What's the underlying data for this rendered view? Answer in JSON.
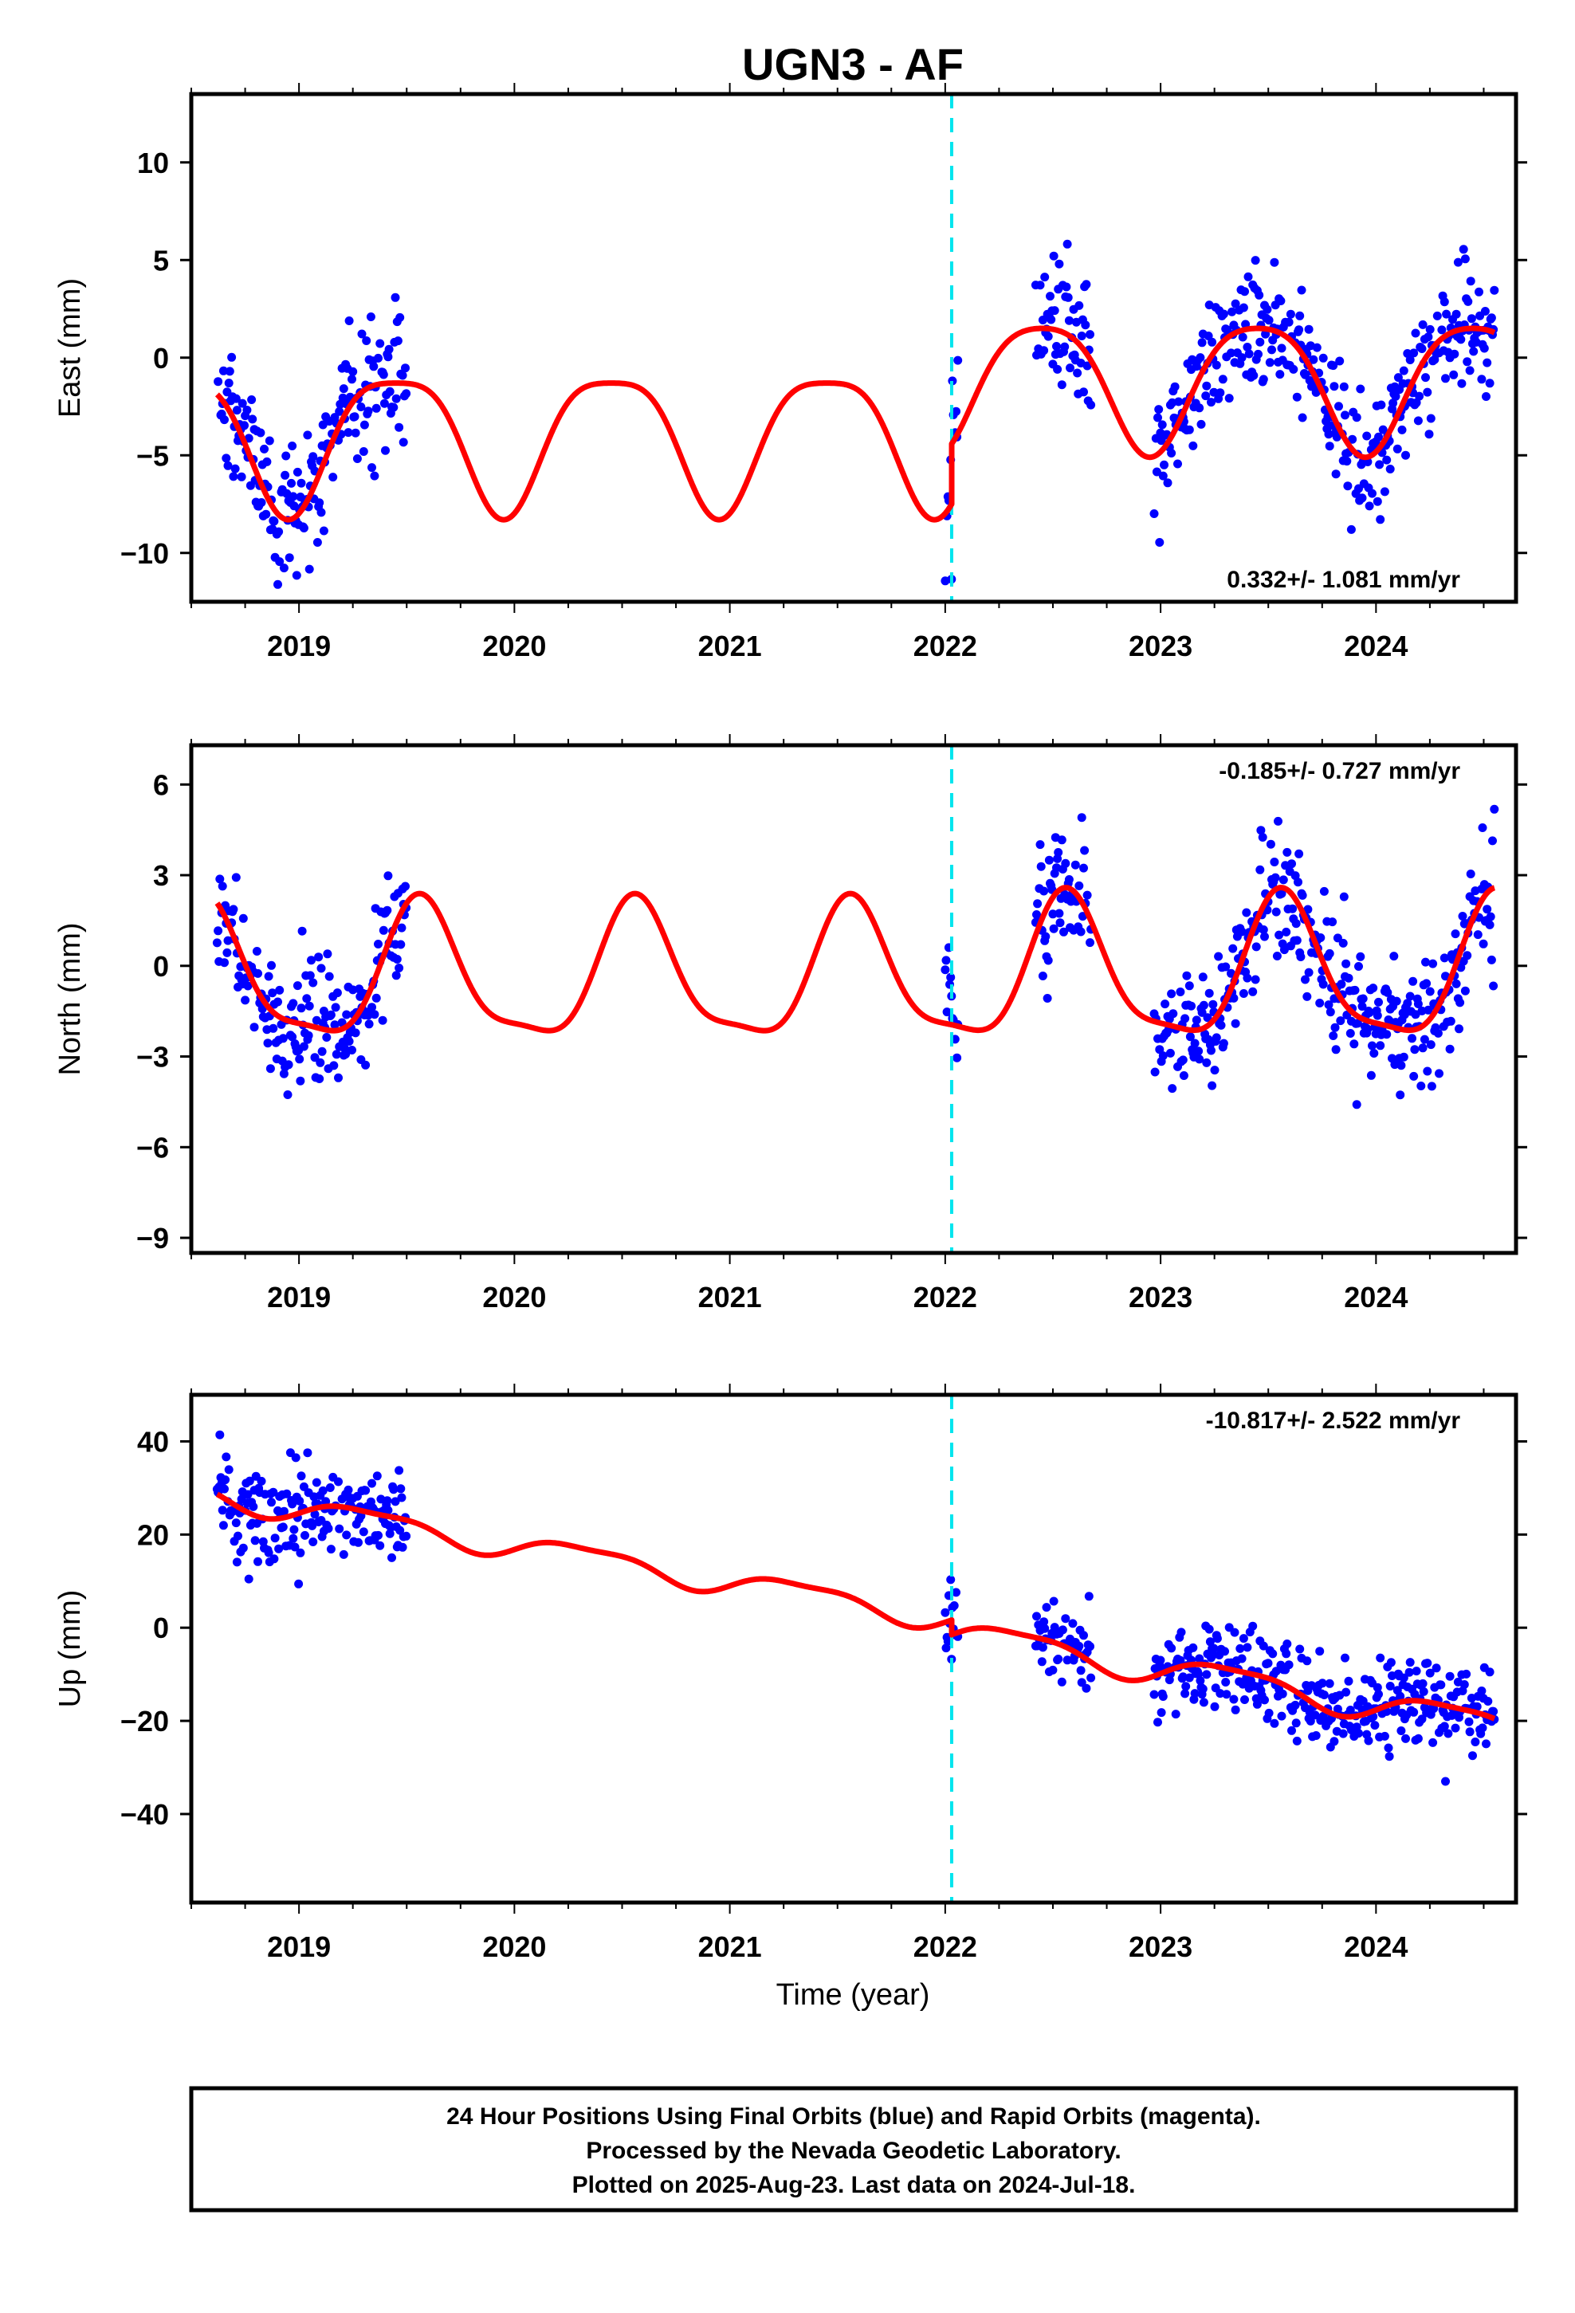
{
  "title": "UGN3 - AF",
  "xlabel": "Time (year)",
  "footer": {
    "line1": "24 Hour Positions Using Final Orbits (blue) and Rapid Orbits (magenta).",
    "line2": "Processed by the Nevada Geodetic Laboratory.",
    "line3": "Plotted on 2025-Aug-23. Last data on 2024-Jul-18."
  },
  "colors": {
    "points": "#0000ff",
    "model": "#ff0000",
    "offset_line": "#00e5ee",
    "frame": "#000000"
  },
  "chart_data": [
    {
      "type": "scatter",
      "ylabel": "East (mm)",
      "rate": "0.332+/- 1.081 mm/yr",
      "xlim": [
        2018.5,
        2024.65
      ],
      "ylim": [
        -12.5,
        13.5
      ],
      "yticks": [
        -10,
        -5,
        0,
        5,
        10
      ],
      "xticks": [
        2019,
        2020,
        2021,
        2022,
        2023,
        2024
      ],
      "offset_x": 2022.03,
      "data_segments": [
        [
          2018.62,
          2019.5
        ],
        [
          2022.0,
          2022.06
        ],
        [
          2022.42,
          2022.68
        ],
        [
          2022.97,
          2024.55
        ]
      ],
      "model": {
        "start": 2018.62,
        "end": 2024.55,
        "break": 2022.03,
        "baseline": [
          -4.0,
          -1.2
        ],
        "trend": 0.0,
        "annual_amp": [
          3.5,
          3.3
        ],
        "annual_peak": 0.45,
        "semi_amp": [
          0.8,
          0.6
        ],
        "semi_peak": 0.2,
        "scatter_sd": 1.6
      }
    },
    {
      "type": "scatter",
      "ylabel": "North (mm)",
      "rate": "-0.185+/- 0.727 mm/yr",
      "xlim": [
        2018.5,
        2024.65
      ],
      "ylim": [
        -9.5,
        7.3
      ],
      "yticks": [
        -9,
        -6,
        -3,
        0,
        3,
        6
      ],
      "xticks": [
        2019,
        2020,
        2021,
        2022,
        2023,
        2024
      ],
      "offset_x": 2022.03,
      "data_segments": [
        [
          2018.62,
          2019.5
        ],
        [
          2022.0,
          2022.06
        ],
        [
          2022.42,
          2022.68
        ],
        [
          2022.97,
          2024.55
        ]
      ],
      "model": {
        "start": 2018.62,
        "end": 2024.55,
        "break": 2022.03,
        "baseline": [
          -0.4,
          -0.3
        ],
        "trend": 0.0,
        "annual_amp": [
          2.2,
          2.3
        ],
        "annual_peak": 0.57,
        "semi_amp": [
          0.6,
          0.6
        ],
        "semi_peak": 0.05,
        "scatter_sd": 1.1
      }
    },
    {
      "type": "scatter",
      "ylabel": "Up (mm)",
      "rate": "-10.817+/- 2.522 mm/yr",
      "xlim": [
        2018.5,
        2024.65
      ],
      "ylim": [
        -59,
        50
      ],
      "yticks": [
        -40,
        -20,
        0,
        20,
        40
      ],
      "xticks": [
        2019,
        2020,
        2021,
        2022,
        2023,
        2024
      ],
      "offset_x": 2022.03,
      "data_segments": [
        [
          2018.62,
          2019.5
        ],
        [
          2022.0,
          2022.06
        ],
        [
          2022.42,
          2022.68
        ],
        [
          2022.97,
          2024.55
        ]
      ],
      "model": {
        "start": 2018.62,
        "end": 2024.55,
        "break": 2022.03,
        "baseline": [
          28.5,
          25.5
        ],
        "trend": -7.8,
        "annual_amp": [
          2.5,
          3.0
        ],
        "annual_peak": 0.33,
        "semi_amp": [
          0.8,
          0.8
        ],
        "semi_peak": 0.1,
        "scatter_sd": 5.0
      }
    }
  ]
}
